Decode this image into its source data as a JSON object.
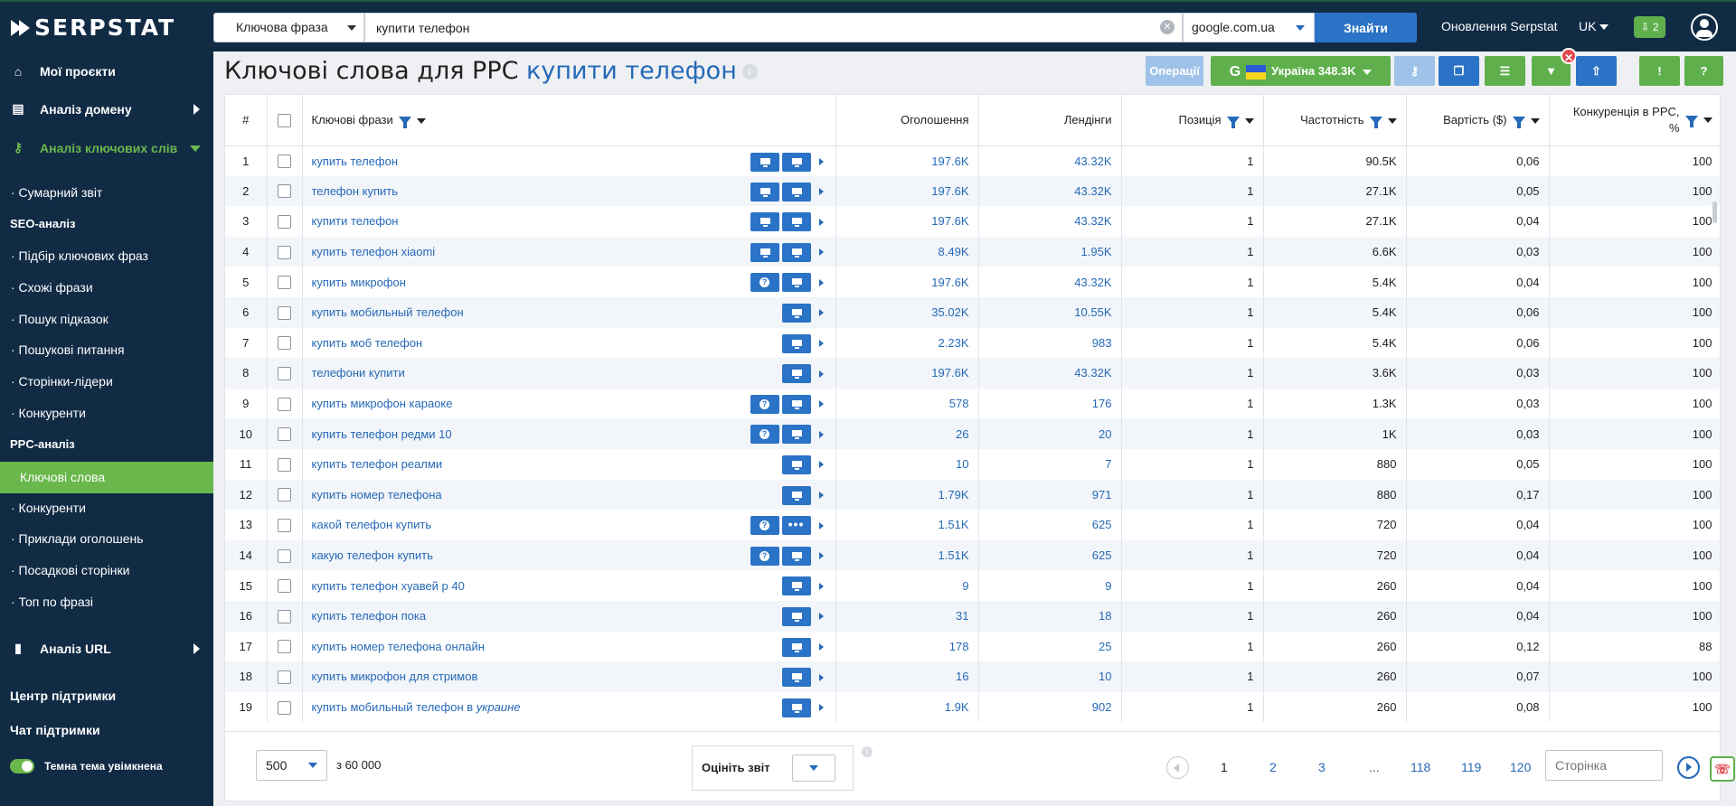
{
  "app": {
    "logo": "SERPSTAT"
  },
  "search": {
    "type": "Ключова фраза",
    "query": "купити телефон",
    "domain": "google.com.ua",
    "button": "Знайти"
  },
  "topnav": {
    "updates": "Оновлення Serpstat",
    "lang": "UK",
    "downloads": "2"
  },
  "sidebar": {
    "main": [
      {
        "label": "Мої проєкти",
        "icon": "home-icon"
      },
      {
        "label": "Аналіз домену",
        "icon": "domain-analysis-icon"
      },
      {
        "label": "Аналіз ключових слів",
        "icon": "key-icon"
      }
    ],
    "summary": "· Сумарний звіт",
    "seo_head": "SEO-аналіз",
    "seo": [
      "· Підбір ключових фраз",
      "· Схожі фрази",
      "· Пошук підказок",
      "· Пошукові питання",
      "· Сторінки-лідери",
      "· Конкуренти"
    ],
    "ppc_head": "PPC-аналіз",
    "ppc_active": "Ключові слова",
    "ppc": [
      "· Конкуренти",
      "· Приклади оголошень",
      "· Посадкові сторінки",
      "· Топ по фразі"
    ],
    "url_analysis": "Аналіз URL",
    "support": "Центр підтримки",
    "chat": "Чат підтримки",
    "dark_theme": "Темна тема увімкнена"
  },
  "page": {
    "title_prefix": "Ключові слова для PPC",
    "title_keyword": "купити телефон"
  },
  "toolbar": {
    "operations": "Операції",
    "region": "Україна 348.3K",
    "engine_glyph": "G"
  },
  "table": {
    "headers": {
      "num": "#",
      "keywords": "Ключові фрази",
      "ads": "Оголошення",
      "landings": "Лендінги",
      "position": "Позиція",
      "frequency": "Частотність",
      "cost": "Вартість ($)",
      "competition_line1": "Конкуренція в PPC,",
      "competition_line2": "%"
    },
    "rows": [
      {
        "n": "1",
        "kw": "купить телефон",
        "ads": "197.6K",
        "land": "43.32K",
        "pos": "1",
        "freq": "90.5K",
        "cost": "0,06",
        "comp": "100",
        "b": [
          "mon",
          "mon"
        ]
      },
      {
        "n": "2",
        "kw": "телефон купить",
        "ads": "197.6K",
        "land": "43.32K",
        "pos": "1",
        "freq": "27.1K",
        "cost": "0,05",
        "comp": "100",
        "b": [
          "mon",
          "mon"
        ]
      },
      {
        "n": "3",
        "kw": "купити телефон",
        "ads": "197.6K",
        "land": "43.32K",
        "pos": "1",
        "freq": "27.1K",
        "cost": "0,04",
        "comp": "100",
        "b": [
          "mon",
          "mon"
        ]
      },
      {
        "n": "4",
        "kw": "купить телефон xiaomi",
        "ads": "8.49K",
        "land": "1.95K",
        "pos": "1",
        "freq": "6.6K",
        "cost": "0,03",
        "comp": "100",
        "b": [
          "mon",
          "mon"
        ]
      },
      {
        "n": "5",
        "kw": "купить микрофон",
        "ads": "197.6K",
        "land": "43.32K",
        "pos": "1",
        "freq": "5.4K",
        "cost": "0,04",
        "comp": "100",
        "b": [
          "q",
          "mon"
        ]
      },
      {
        "n": "6",
        "kw": "купить мобильный телефон",
        "ads": "35.02K",
        "land": "10.55K",
        "pos": "1",
        "freq": "5.4K",
        "cost": "0,06",
        "comp": "100",
        "b": [
          "mon"
        ]
      },
      {
        "n": "7",
        "kw": "купить моб телефон",
        "ads": "2.23K",
        "land": "983",
        "pos": "1",
        "freq": "5.4K",
        "cost": "0,06",
        "comp": "100",
        "b": [
          "mon"
        ]
      },
      {
        "n": "8",
        "kw": "телефони купити",
        "ads": "197.6K",
        "land": "43.32K",
        "pos": "1",
        "freq": "3.6K",
        "cost": "0,03",
        "comp": "100",
        "b": [
          "mon"
        ]
      },
      {
        "n": "9",
        "kw": "купить микрофон караоке",
        "ads": "578",
        "land": "176",
        "pos": "1",
        "freq": "1.3K",
        "cost": "0,03",
        "comp": "100",
        "b": [
          "q",
          "mon"
        ]
      },
      {
        "n": "10",
        "kw": "купить телефон редми 10",
        "ads": "26",
        "land": "20",
        "pos": "1",
        "freq": "1K",
        "cost": "0,03",
        "comp": "100",
        "b": [
          "q",
          "mon"
        ]
      },
      {
        "n": "11",
        "kw": "купить телефон реалми",
        "ads": "10",
        "land": "7",
        "pos": "1",
        "freq": "880",
        "cost": "0,05",
        "comp": "100",
        "b": [
          "mon"
        ]
      },
      {
        "n": "12",
        "kw": "купить номер телефона",
        "ads": "1.79K",
        "land": "971",
        "pos": "1",
        "freq": "880",
        "cost": "0,17",
        "comp": "100",
        "b": [
          "mon"
        ]
      },
      {
        "n": "13",
        "kw": "какой телефон купить",
        "ads": "1.51K",
        "land": "625",
        "pos": "1",
        "freq": "720",
        "cost": "0,04",
        "comp": "100",
        "b": [
          "q",
          "dots"
        ]
      },
      {
        "n": "14",
        "kw": "какую телефон купить",
        "ads": "1.51K",
        "land": "625",
        "pos": "1",
        "freq": "720",
        "cost": "0,04",
        "comp": "100",
        "b": [
          "q",
          "mon"
        ]
      },
      {
        "n": "15",
        "kw": "купить телефон хуавей р 40",
        "ads": "9",
        "land": "9",
        "pos": "1",
        "freq": "260",
        "cost": "0,04",
        "comp": "100",
        "b": [
          "mon"
        ]
      },
      {
        "n": "16",
        "kw": "купить телефон пока",
        "ads": "31",
        "land": "18",
        "pos": "1",
        "freq": "260",
        "cost": "0,04",
        "comp": "100",
        "b": [
          "mon"
        ]
      },
      {
        "n": "17",
        "kw": "купить номер телефона онлайн",
        "ads": "178",
        "land": "25",
        "pos": "1",
        "freq": "260",
        "cost": "0,12",
        "comp": "88",
        "b": [
          "mon"
        ]
      },
      {
        "n": "18",
        "kw": "купить микрофон для стримов",
        "ads": "16",
        "land": "10",
        "pos": "1",
        "freq": "260",
        "cost": "0,07",
        "comp": "100",
        "b": [
          "mon"
        ]
      },
      {
        "n": "19",
        "kw": "купить мобильный телефон в",
        "kw_em": "украине",
        "ads": "1.9K",
        "land": "902",
        "pos": "1",
        "freq": "260",
        "cost": "0,08",
        "comp": "100",
        "b": [
          "mon"
        ]
      }
    ]
  },
  "footer": {
    "per_page": "500",
    "total": "з 60 000",
    "rate": "Оцініть звіт",
    "pages": [
      "1",
      "2",
      "3",
      "...",
      "118",
      "119",
      "120"
    ],
    "page_placeholder": "Сторінка"
  }
}
